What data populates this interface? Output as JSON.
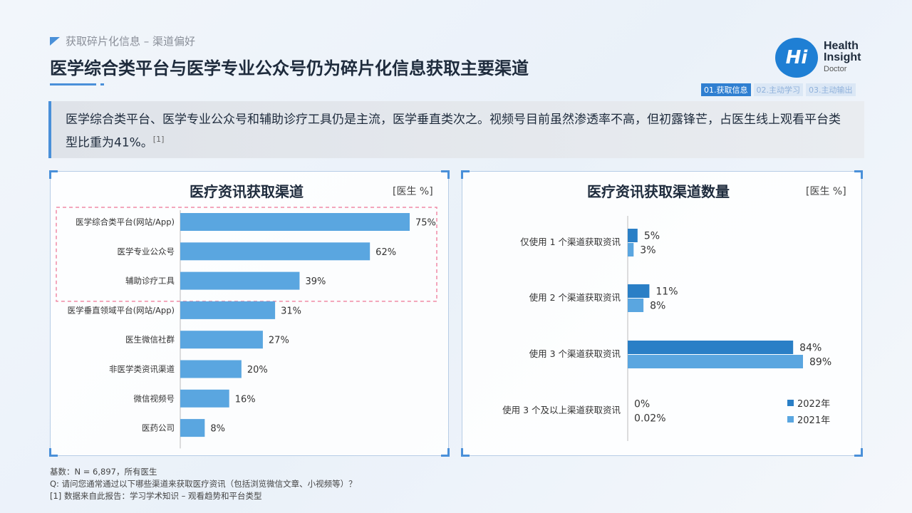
{
  "header": {
    "section_label": "获取碎片化信息 – 渠道偏好",
    "title": "医学综合类平台与医学专业公众号仍为碎片化信息获取主要渠道"
  },
  "logo": {
    "mark": "Hi",
    "line1": "Health",
    "line2": "Insight",
    "line3": "Doctor"
  },
  "tabs": [
    {
      "label": "01.获取信息",
      "active": true
    },
    {
      "label": "02.主动学习",
      "active": false
    },
    {
      "label": "03.主动输出",
      "active": false
    }
  ],
  "callout": {
    "text": "医学综合类平台、医学专业公众号和辅助诊疗工具仍是主流，医学垂直类次之。视频号目前虽然渗透率不高，但初露锋芒，占医生线上观看平台类型比重为41%。",
    "ref": "[1]"
  },
  "left_panel": {
    "title": "医疗资讯获取渠道",
    "unit": "[医生 %]"
  },
  "right_panel": {
    "title": "医疗资讯获取渠道数量",
    "unit": "[医生 %]"
  },
  "chart_data": [
    {
      "type": "bar",
      "orientation": "horizontal",
      "categories": [
        "医学综合类平台(网站/App)",
        "医学专业公众号",
        "辅助诊疗工具",
        "医学垂直领域平台(网站/App)",
        "医生微信社群",
        "非医学类资讯渠道",
        "微信视频号",
        "医药公司"
      ],
      "values": [
        75,
        62,
        39,
        31,
        27,
        20,
        16,
        8
      ],
      "value_labels": [
        "75%",
        "62%",
        "39%",
        "31%",
        "27%",
        "20%",
        "16%",
        "8%"
      ],
      "highlighted_categories": [
        "医学综合类平台(网站/App)",
        "医学专业公众号",
        "辅助诊疗工具"
      ],
      "xlim": [
        0,
        80
      ],
      "color": "#5aa6e0",
      "highlight_color": "#f08aa5"
    },
    {
      "type": "bar",
      "orientation": "horizontal",
      "categories": [
        "仅使用 1 个渠道获取资讯",
        "使用 2 个渠道获取资讯",
        "使用 3 个渠道获取资讯",
        "使用 3 个及以上渠道获取资讯"
      ],
      "series": [
        {
          "name": "2022年",
          "values": [
            5,
            11,
            84,
            0
          ],
          "labels": [
            "5%",
            "11%",
            "84%",
            "0%"
          ],
          "color": "#2a7fc6"
        },
        {
          "name": "2021年",
          "values": [
            3,
            8,
            89,
            0.02
          ],
          "labels": [
            "3%",
            "8%",
            "89%",
            "0.02%"
          ],
          "color": "#5aa6e0"
        }
      ],
      "xlim": [
        0,
        100
      ],
      "legend": "bottom-right"
    }
  ],
  "footer": {
    "line1": "基数：N = 6,897，所有医生",
    "line2": "Q: 请问您通常通过以下哪些渠道来获取医疗资讯（包括浏览微信文章、小视频等）？",
    "line3": "[1] 数据来自此报告：学习学术知识 – 观看趋势和平台类型"
  }
}
